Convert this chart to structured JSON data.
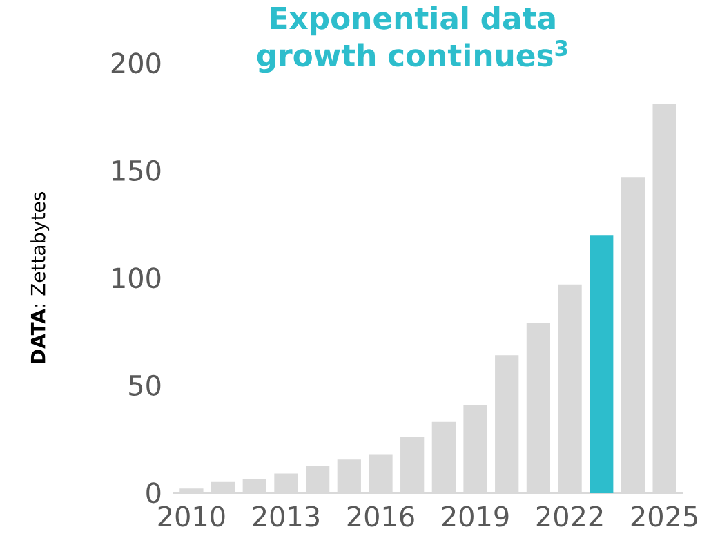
{
  "chart_data": {
    "type": "bar",
    "title": "Exponential data growth continues$^{3}$",
    "ylabel": "**DATA**: Zettabytes",
    "categories": [
      "2010",
      null,
      null,
      "2013",
      null,
      null,
      "2016",
      null,
      null,
      "2019",
      null,
      null,
      "2022",
      null,
      null,
      "2025"
    ],
    "values": [
      2,
      5,
      6.5,
      9,
      12.5,
      15.5,
      18,
      26,
      33,
      41,
      64,
      79,
      97,
      120,
      147,
      181
    ],
    "colors": [
      "#d9d9d9",
      "#d9d9d9",
      "#d9d9d9",
      "#d9d9d9",
      "#d9d9d9",
      "#d9d9d9",
      "#d9d9d9",
      "#d9d9d9",
      "#d9d9d9",
      "#d9d9d9",
      "#d9d9d9",
      "#d9d9d9",
      "#d9d9d9",
      "#2dbdcc",
      "#d9d9d9",
      "#d9d9d9"
    ],
    "ylim": [
      0,
      200
    ],
    "yticks": [
      0,
      50,
      100,
      150,
      200
    ]
  }
}
